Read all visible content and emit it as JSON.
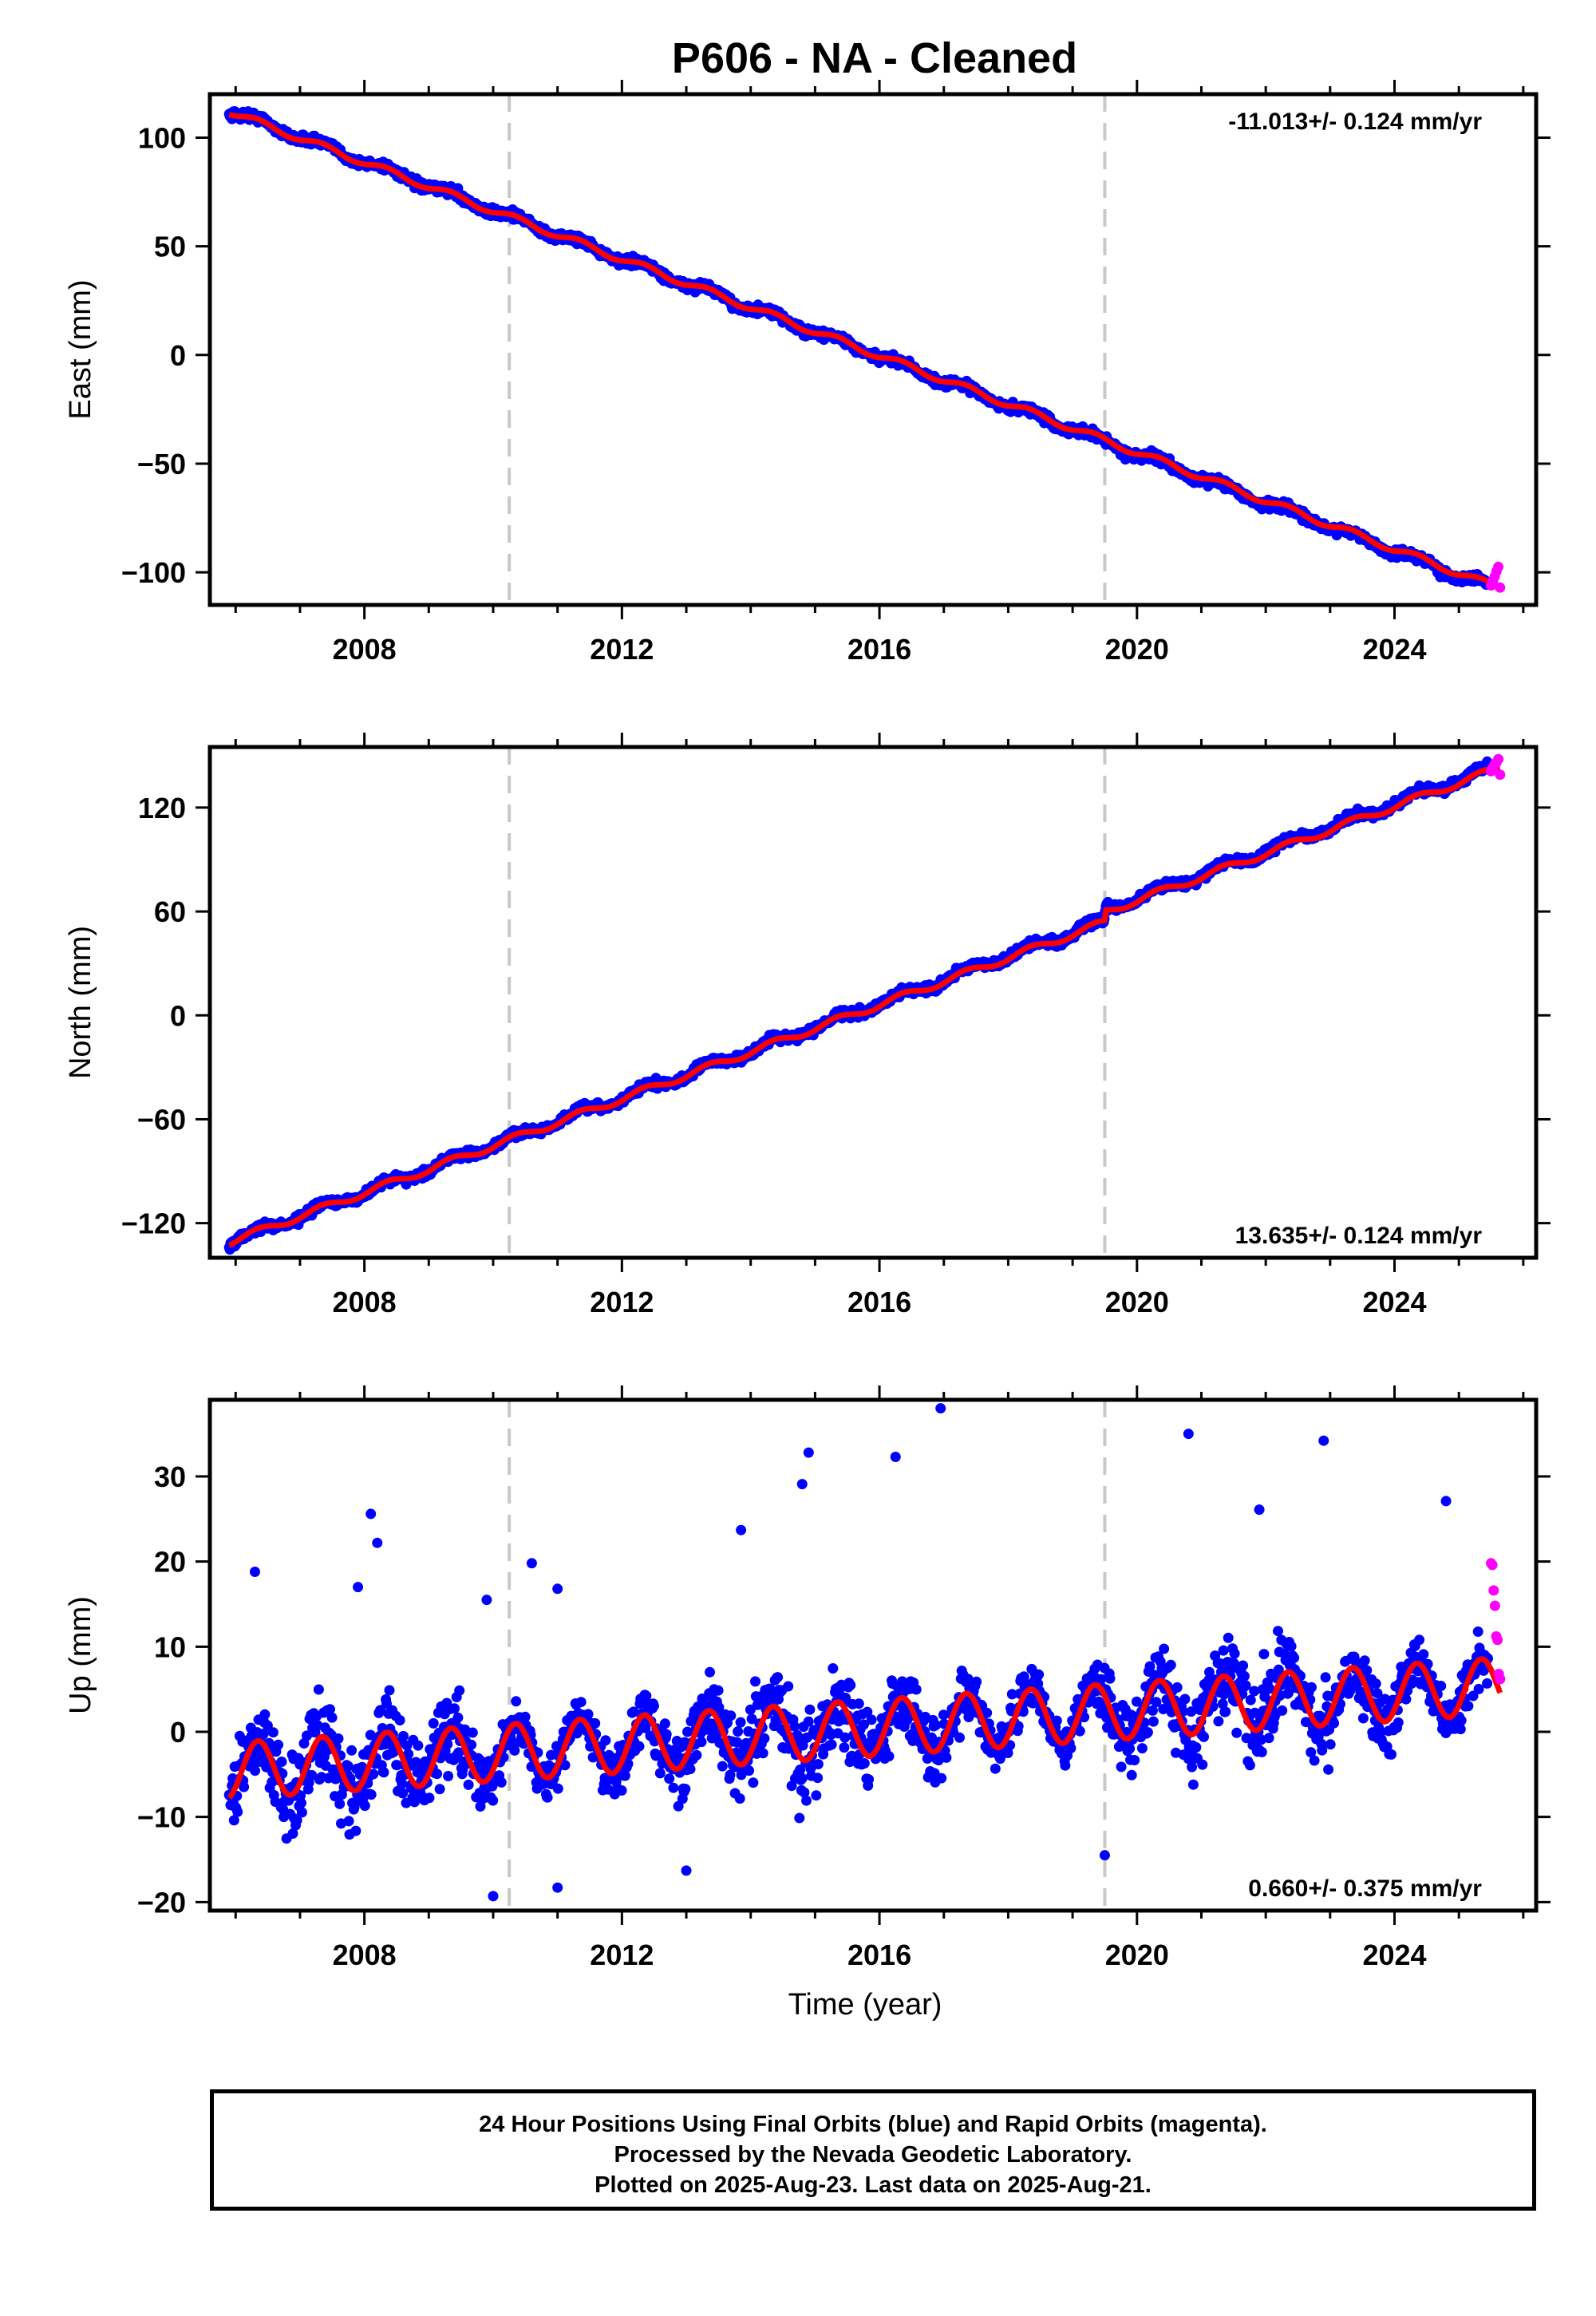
{
  "title": "P606  - NA - Cleaned",
  "colors": {
    "final_orbits": "#0000ff",
    "rapid_orbits": "#ff00ff",
    "model": "#ff0000",
    "event_line": "#c8c8c8"
  },
  "footer": {
    "line1": "24 Hour Positions Using Final Orbits (blue) and Rapid Orbits (magenta).",
    "line2": "Processed by the Nevada Geodetic Laboratory.",
    "line3": "Plotted on 2025-Aug-23. Last data on 2025-Aug-21."
  },
  "chart_data": [
    {
      "type": "scatter",
      "panel": "east",
      "ylabel": "East (mm)",
      "xlabel": "",
      "xlim": [
        2005.6,
        2026.2
      ],
      "ylim": [
        -115,
        120
      ],
      "xticks": [
        2008,
        2012,
        2016,
        2020,
        2024
      ],
      "yticks": [
        -100,
        -50,
        0,
        50,
        100
      ],
      "ytick_labels": [
        "−100",
        "−50",
        "0",
        "50",
        "100"
      ],
      "rate_label": "-11.013+/- 0.124 mm/yr",
      "rate_label_position": "top-right",
      "event_lines_x": [
        2010.25,
        2019.5
      ],
      "series": [
        {
          "name": "Final Orbits (blue)",
          "role": "final",
          "start_x": 2005.9,
          "end_x": 2025.45,
          "start_y": 112.5,
          "end_y": -106.5,
          "seasonal_amp": 1.6,
          "noise": 2.2
        },
        {
          "name": "Rapid Orbits (magenta)",
          "role": "rapid",
          "start_x": 2025.5,
          "end_x": 2025.64,
          "y_values": [
            -106,
            -104,
            -102,
            -99.5,
            -97.5,
            -107
          ]
        },
        {
          "role": "model",
          "start_x": 2005.9,
          "end_x": 2025.64,
          "start_y": 112,
          "end_y": -107.5,
          "seasonal_amp": 1.5
        }
      ]
    },
    {
      "type": "scatter",
      "panel": "north",
      "ylabel": "North (mm)",
      "xlabel": "",
      "xlim": [
        2005.6,
        2026.2
      ],
      "ylim": [
        -140,
        155
      ],
      "xticks": [
        2008,
        2012,
        2016,
        2020,
        2024
      ],
      "yticks": [
        -120,
        -60,
        0,
        60,
        120
      ],
      "ytick_labels": [
        "−120",
        "−60",
        "0",
        "60",
        "120"
      ],
      "rate_label": "13.635+/- 0.124 mm/yr",
      "rate_label_position": "bottom-right",
      "event_lines_x": [
        2010.25,
        2019.5
      ],
      "offset_at": 2019.5,
      "offset_mm": 6,
      "series": [
        {
          "name": "Final Orbits (blue)",
          "role": "final",
          "start_x": 2005.9,
          "end_x": 2025.45,
          "start_y": -131,
          "end_y": 142,
          "seasonal_amp": 2.2,
          "noise": 2.6
        },
        {
          "name": "Rapid Orbits (magenta)",
          "role": "rapid",
          "start_x": 2025.5,
          "end_x": 2025.64,
          "y_values": [
            141,
            143,
            145,
            146,
            148,
            139
          ]
        },
        {
          "role": "model",
          "start_x": 2005.9,
          "end_x": 2025.64,
          "start_y": -131,
          "end_y": 143,
          "seasonal_amp": 2.0
        }
      ]
    },
    {
      "type": "scatter",
      "panel": "up",
      "ylabel": "Up (mm)",
      "xlabel": "Time (year)",
      "xlim": [
        2005.6,
        2026.2
      ],
      "ylim": [
        -21,
        39
      ],
      "xticks": [
        2008,
        2012,
        2016,
        2020,
        2024
      ],
      "yticks": [
        -20,
        -10,
        0,
        10,
        20,
        30
      ],
      "ytick_labels": [
        "−20",
        "−10",
        "0",
        "10",
        "20",
        "30"
      ],
      "rate_label": "0.660+/- 0.375 mm/yr",
      "rate_label_position": "bottom-right",
      "event_lines_x": [
        2010.25,
        2019.5
      ],
      "outliers": [
        [
          2006.3,
          18.8
        ],
        [
          2007.9,
          17
        ],
        [
          2008.1,
          25.6
        ],
        [
          2008.2,
          22.2
        ],
        [
          2009.9,
          15.5
        ],
        [
          2010.6,
          19.8
        ],
        [
          2011.0,
          16.8
        ],
        [
          2013.85,
          23.7
        ],
        [
          2014.8,
          29.1
        ],
        [
          2014.9,
          32.8
        ],
        [
          2016.25,
          32.3
        ],
        [
          2016.95,
          38
        ],
        [
          2020.8,
          35
        ],
        [
          2021.9,
          26.1
        ],
        [
          2022.9,
          34.2
        ],
        [
          2024.8,
          27.1
        ],
        [
          2010.0,
          -19.3
        ],
        [
          2011.0,
          -18.3
        ],
        [
          2013.0,
          -16.3
        ],
        [
          2019.5,
          -14.5
        ]
      ],
      "series": [
        {
          "name": "Final Orbits (blue)",
          "role": "final",
          "start_x": 2005.9,
          "end_x": 2025.45,
          "start_y": -4.6,
          "end_y": 5.3,
          "seasonal_amp": 3.3,
          "noise": 4.2
        },
        {
          "name": "Rapid Orbits (magenta)",
          "role": "rapid",
          "start_x": 2025.5,
          "end_x": 2025.64,
          "y_values": [
            19.8,
            19.6,
            16.6,
            14.8,
            11.2,
            10.8,
            6.8,
            6.2
          ]
        },
        {
          "role": "model",
          "start_x": 2005.9,
          "end_x": 2025.64,
          "start_y": -4.6,
          "end_y": 5.4,
          "seasonal_amp": 3.3
        }
      ]
    }
  ]
}
